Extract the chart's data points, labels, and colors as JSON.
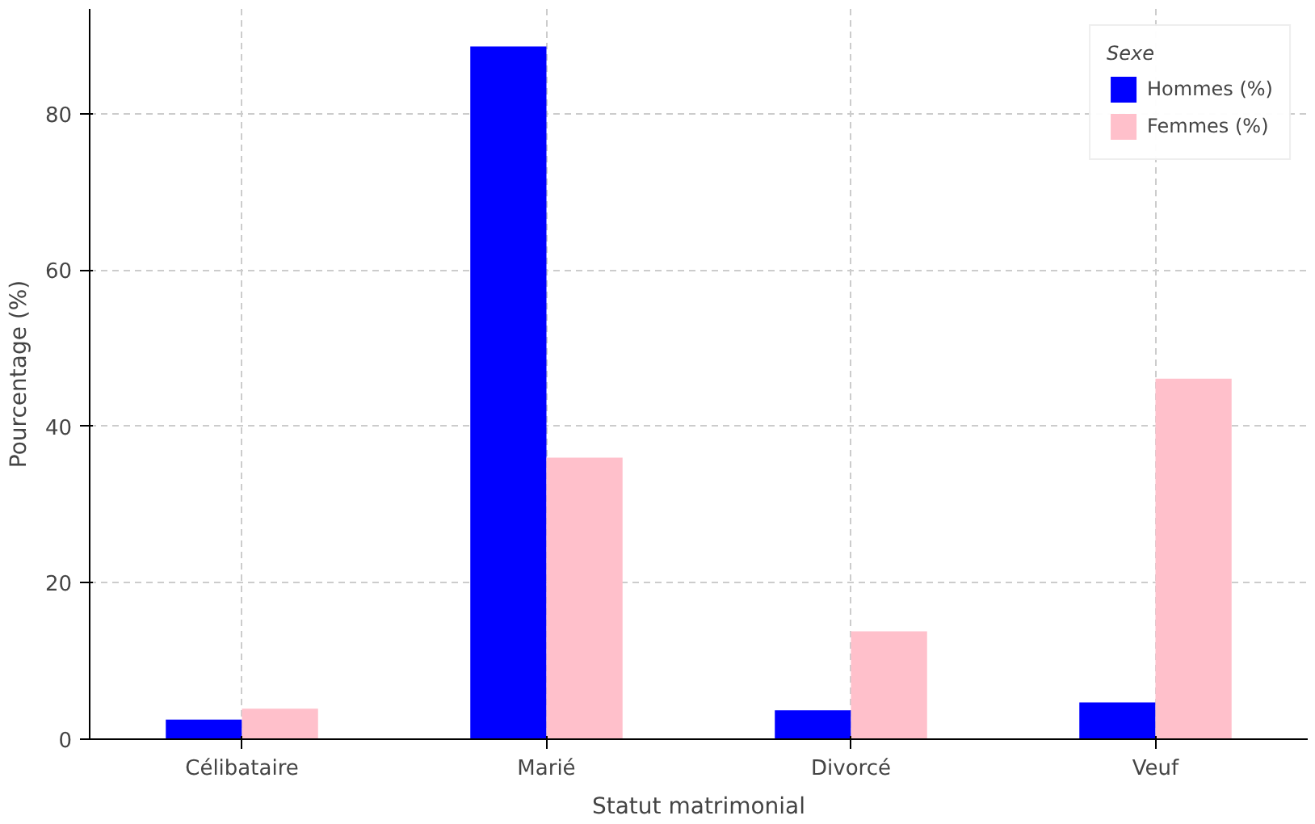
{
  "chart_data": {
    "type": "bar",
    "xlabel": "Statut matrimonial",
    "ylabel": "Pourcentage (%)",
    "legend_title": "Sexe",
    "categories": [
      "Célibataire",
      "Marié",
      "Divorcé",
      "Veuf"
    ],
    "series": [
      {
        "name": "Hommes (%)",
        "color": "#0000ff",
        "values": [
          2.5,
          88.6,
          3.7,
          4.7
        ]
      },
      {
        "name": "Femmes (%)",
        "color": "#ffc0cb",
        "values": [
          3.9,
          36.0,
          13.8,
          46.1
        ]
      }
    ],
    "ylim": [
      0,
      93.4
    ],
    "yticks": [
      0,
      20,
      40,
      60,
      80
    ],
    "grid": true,
    "legend": "top right"
  }
}
